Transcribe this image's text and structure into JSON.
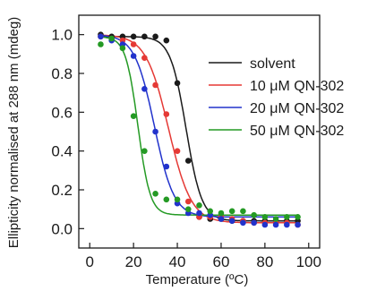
{
  "chart_data": {
    "type": "scatter",
    "xlabel": "Temperature (ºC)",
    "ylabel": "Ellipticity normalised at 288 nm (mdeg)",
    "xlim": [
      -5,
      105
    ],
    "ylim": [
      -0.1,
      1.1
    ],
    "x_ticks": [
      "0",
      "20",
      "40",
      "60",
      "80",
      "100"
    ],
    "y_ticks": [
      "0.0",
      "0.2",
      "0.4",
      "0.6",
      "0.8",
      "1.0"
    ],
    "legend_position": "top-right",
    "grid": false,
    "series": [
      {
        "name": "solvent",
        "color": "#1a1a1a",
        "points": [
          [
            5,
            1.0
          ],
          [
            10,
            0.99
          ],
          [
            15,
            0.99
          ],
          [
            20,
            0.99
          ],
          [
            25,
            0.99
          ],
          [
            30,
            0.99
          ],
          [
            35,
            0.97
          ],
          [
            40,
            0.75
          ],
          [
            45,
            0.35
          ],
          [
            50,
            0.06
          ],
          [
            55,
            0.05
          ],
          [
            60,
            0.05
          ],
          [
            65,
            0.04
          ],
          [
            70,
            0.04
          ],
          [
            75,
            0.04
          ],
          [
            80,
            0.04
          ],
          [
            85,
            0.04
          ],
          [
            90,
            0.04
          ],
          [
            95,
            0.04
          ]
        ],
        "fit": {
          "tm": 44,
          "width": 3.6,
          "top": 0.99,
          "bottom": 0.04
        }
      },
      {
        "name": "10 μM QN-302",
        "color": "#e53935",
        "points": [
          [
            5,
            0.99
          ],
          [
            10,
            0.98
          ],
          [
            15,
            0.97
          ],
          [
            20,
            0.95
          ],
          [
            25,
            0.88
          ],
          [
            30,
            0.74
          ],
          [
            35,
            0.59
          ],
          [
            40,
            0.4
          ],
          [
            45,
            0.14
          ],
          [
            50,
            0.06
          ],
          [
            55,
            0.06
          ],
          [
            60,
            0.06
          ],
          [
            65,
            0.05
          ],
          [
            70,
            0.04
          ],
          [
            75,
            0.03
          ],
          [
            80,
            0.03
          ],
          [
            85,
            0.03
          ],
          [
            90,
            0.03
          ],
          [
            95,
            0.02
          ]
        ],
        "fit": {
          "tm": 36,
          "width": 5.2,
          "top": 1.0,
          "bottom": 0.03
        }
      },
      {
        "name": "20 μM QN-302",
        "color": "#2233cc",
        "points": [
          [
            5,
            0.99
          ],
          [
            10,
            0.97
          ],
          [
            15,
            0.95
          ],
          [
            20,
            0.89
          ],
          [
            25,
            0.72
          ],
          [
            30,
            0.5
          ],
          [
            35,
            0.32
          ],
          [
            40,
            0.13
          ],
          [
            45,
            0.08
          ],
          [
            50,
            0.08
          ],
          [
            55,
            0.07
          ],
          [
            60,
            0.05
          ],
          [
            65,
            0.04
          ],
          [
            70,
            0.03
          ],
          [
            75,
            0.03
          ],
          [
            80,
            0.02
          ],
          [
            85,
            0.02
          ],
          [
            90,
            0.02
          ],
          [
            95,
            0.02
          ]
        ],
        "fit": {
          "tm": 29.5,
          "width": 4.5,
          "top": 1.0,
          "bottom": 0.06
        }
      },
      {
        "name": "50 μM QN-302",
        "color": "#249a24",
        "points": [
          [
            5,
            0.95
          ],
          [
            10,
            0.98
          ],
          [
            15,
            0.93
          ],
          [
            20,
            0.58
          ],
          [
            25,
            0.4
          ],
          [
            30,
            0.18
          ],
          [
            35,
            0.15
          ],
          [
            40,
            0.15
          ],
          [
            45,
            0.1
          ],
          [
            50,
            0.12
          ],
          [
            55,
            0.09
          ],
          [
            60,
            0.08
          ],
          [
            65,
            0.09
          ],
          [
            70,
            0.09
          ],
          [
            75,
            0.07
          ],
          [
            80,
            0.06
          ],
          [
            85,
            0.05
          ],
          [
            90,
            0.06
          ],
          [
            95,
            0.06
          ]
        ],
        "fit": {
          "tm": 22,
          "width": 2.8,
          "top": 0.99,
          "bottom": 0.07
        }
      }
    ]
  }
}
